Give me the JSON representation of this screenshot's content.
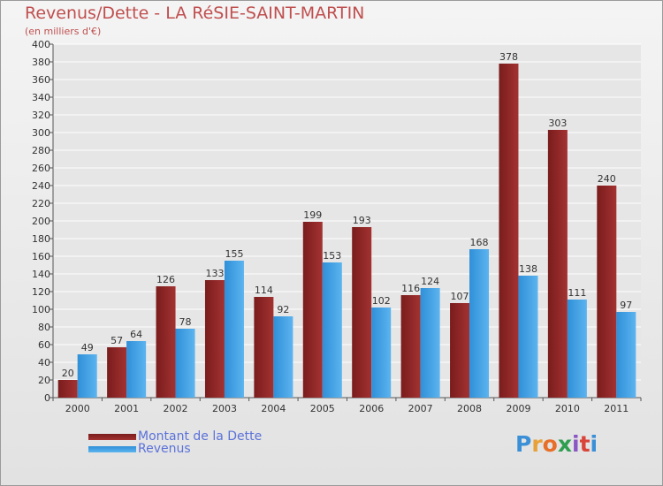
{
  "title": "Revenus/Dette - LA RéSIE-SAINT-MARTIN",
  "subtitle": "(en milliers d'€)",
  "logo": {
    "letters": [
      "P",
      "r",
      "o",
      "x",
      "i",
      "t",
      "i"
    ],
    "colors": [
      "#3b8fd6",
      "#e8a13a",
      "#e86f2a",
      "#2e9e4f",
      "#8a56c4",
      "#d9453a",
      "#3b8fd6"
    ]
  },
  "colors": {
    "dette": "#7a1c1c",
    "dette_light": "#a33232",
    "revenus": "#2f8fd8",
    "revenus_light": "#5cb4ef",
    "grid": "#ffffff"
  },
  "chart_data": {
    "type": "bar",
    "categories": [
      "2000",
      "2001",
      "2002",
      "2003",
      "2004",
      "2005",
      "2006",
      "2007",
      "2008",
      "2009",
      "2010",
      "2011"
    ],
    "series": [
      {
        "name": "Montant de la Dette",
        "values": [
          20,
          57,
          126,
          133,
          114,
          199,
          193,
          116,
          107,
          378,
          303,
          240
        ]
      },
      {
        "name": "Revenus",
        "values": [
          49,
          64,
          78,
          155,
          92,
          153,
          102,
          124,
          168,
          138,
          111,
          97
        ]
      }
    ],
    "ylim": [
      0,
      400
    ],
    "ytick_step": 20,
    "grid": true,
    "legend_position": "bottom-left"
  }
}
